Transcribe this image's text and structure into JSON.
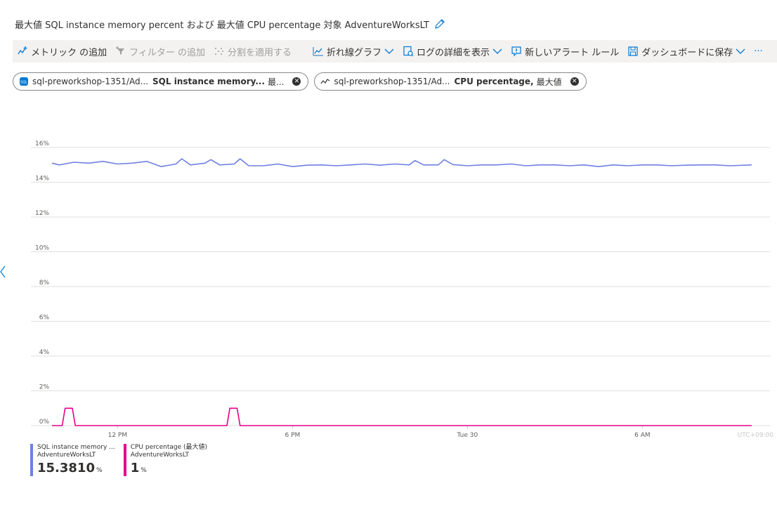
{
  "header": {
    "title": "最大値 SQL instance memory percent および 最大値 CPU percentage 対象 AdventureWorksLT"
  },
  "toolbar": {
    "items": [
      {
        "label": "メトリック の追加",
        "icon": "add-metric-icon",
        "disabled": false
      },
      {
        "label": "フィルター の追加",
        "icon": "filter-icon",
        "disabled": true
      },
      {
        "label": "分割を適用する",
        "icon": "split-icon",
        "disabled": true
      },
      {
        "label": "折れ線グラフ",
        "icon": "line-chart-icon",
        "disabled": false
      },
      {
        "label": "ログの詳細を表示",
        "icon": "logs-icon",
        "disabled": false
      },
      {
        "label": "新しいアラート ルール",
        "icon": "alert-icon",
        "disabled": false
      },
      {
        "label": "ダッシュボードに保存",
        "icon": "save-icon",
        "disabled": false
      }
    ],
    "more": "···"
  },
  "pills": [
    {
      "resource": "sql-preworkshop-1351/Ad...",
      "metric": "SQL instance memory...",
      "agg": "最...",
      "icon": "sql-database-icon"
    },
    {
      "resource": "sql-preworkshop-1351/Ad...",
      "metric": "CPU percentage,",
      "agg": "最大値",
      "icon": "metric-line-icon"
    }
  ],
  "chart_data": {
    "type": "line",
    "y_ticks": [
      "16%",
      "14%",
      "12%",
      "10%",
      "8%",
      "6%",
      "4%",
      "2%",
      "0%"
    ],
    "ylim": [
      0,
      16
    ],
    "x_ticks": [
      "12 PM",
      "6 PM",
      "Tue 30",
      "6 AM"
    ],
    "x_ticks_hours": [
      12,
      18,
      24,
      30
    ],
    "xlim": [
      9.75,
      33.75
    ],
    "series": [
      {
        "name": "SQL instance memory percent",
        "color": "#6e80e3",
        "x": [
          9.75,
          10.0,
          10.5,
          11.0,
          11.5,
          12.0,
          12.5,
          13.0,
          13.5,
          14.0,
          14.2,
          14.5,
          15.0,
          15.2,
          15.5,
          16.0,
          16.2,
          16.5,
          17.0,
          17.5,
          18.0,
          18.5,
          19.0,
          19.5,
          20.0,
          20.5,
          21.0,
          21.5,
          22.0,
          22.2,
          22.5,
          23.0,
          23.2,
          23.5,
          24.0,
          24.5,
          25.0,
          25.5,
          26.0,
          26.5,
          27.0,
          27.5,
          28.0,
          28.5,
          29.0,
          29.5,
          30.0,
          30.5,
          31.0,
          31.5,
          32.0,
          32.5,
          33.0,
          33.75
        ],
        "y": [
          15.1,
          15.0,
          15.15,
          15.1,
          15.2,
          15.05,
          15.1,
          15.2,
          14.9,
          15.05,
          15.35,
          15.0,
          15.1,
          15.3,
          15.0,
          15.05,
          15.35,
          14.95,
          14.95,
          15.05,
          14.9,
          14.98,
          15.0,
          14.95,
          15.0,
          15.05,
          14.98,
          15.05,
          15.0,
          15.25,
          15.0,
          15.0,
          15.3,
          15.02,
          14.95,
          15.0,
          15.0,
          15.05,
          14.95,
          15.0,
          15.0,
          14.95,
          15.0,
          14.9,
          15.0,
          14.95,
          15.0,
          15.0,
          14.95,
          14.98,
          15.0,
          15.0,
          14.95,
          15.0
        ]
      },
      {
        "name": "CPU percentage",
        "color": "#e3008c",
        "x": [
          9.75,
          10.1,
          10.2,
          10.45,
          10.55,
          15.75,
          15.85,
          16.1,
          16.2,
          33.75
        ],
        "y": [
          0,
          0,
          1,
          1,
          0,
          0,
          1,
          1,
          0,
          0
        ]
      }
    ],
    "timezone_label": "UTC+09:00"
  },
  "legend": [
    {
      "name": "SQL instance memory ...",
      "resource": "AdventureWorksLT",
      "value": "15.3810",
      "unit": "%",
      "color": "#6e80e3"
    },
    {
      "name": "CPU percentage (最大値)",
      "resource": "AdventureWorksLT",
      "value": "1",
      "unit": "%",
      "color": "#e3008c"
    }
  ]
}
